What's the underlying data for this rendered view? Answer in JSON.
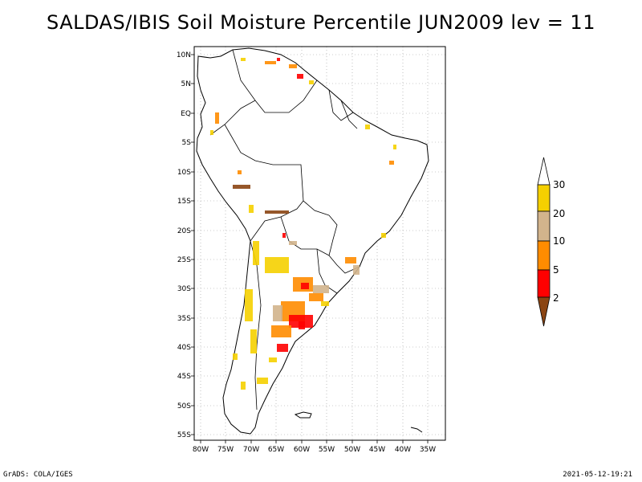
{
  "title": "SALDAS/IBIS Soil Moisture Percentile JUN2009 lev = 11",
  "map": {
    "lon_range": [
      -80,
      -32
    ],
    "lat_range": [
      -56,
      12
    ],
    "lon_ticks": [
      "80W",
      "75W",
      "70W",
      "65W",
      "60W",
      "55W",
      "50W",
      "45W",
      "40W",
      "35W"
    ],
    "lat_ticks": [
      "10N",
      "5N",
      "EQ",
      "5S",
      "10S",
      "15S",
      "20S",
      "25S",
      "30S",
      "35S",
      "40S",
      "45S",
      "50S",
      "55S"
    ],
    "grid": "dotted",
    "land_color": "#ffffff",
    "outline_color": "#000000"
  },
  "legend": {
    "labels": [
      "30",
      "20",
      "10",
      "5",
      "2"
    ],
    "colors": {
      "above_30": "#ffffff",
      "20_30": "#f5d000",
      "10_20": "#d2b48c",
      "5_10": "#ff8c00",
      "2_5": "#ff0000",
      "below_2": "#8b4513"
    }
  },
  "footer": {
    "left": "GrADS: COLA/IGES",
    "right": "2021-05-12-19:21"
  }
}
